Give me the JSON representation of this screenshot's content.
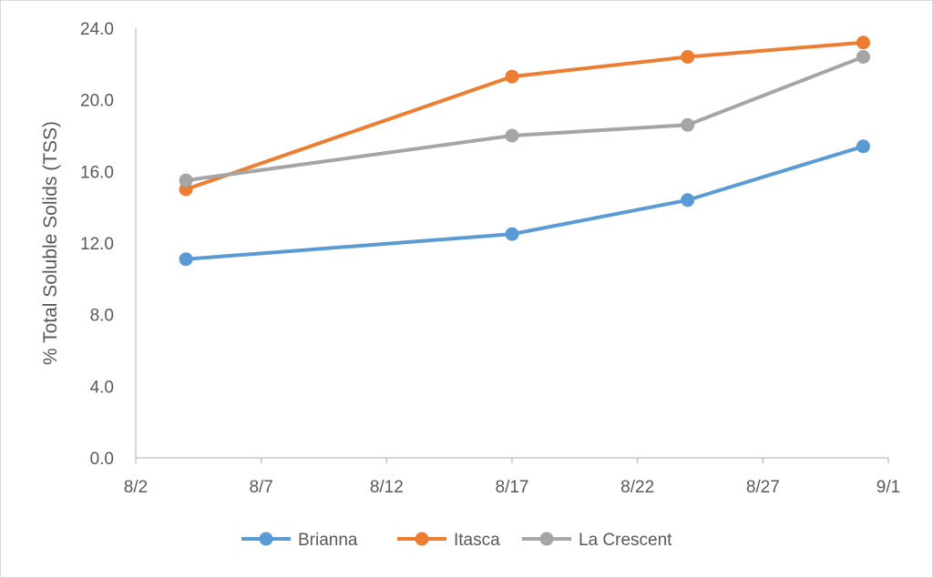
{
  "chart_data": {
    "type": "line",
    "title": "",
    "xlabel": "",
    "ylabel": "% Total Soluble Solids (TSS)",
    "x_ticks": [
      "8/2",
      "8/7",
      "8/12",
      "8/17",
      "8/22",
      "8/27",
      "9/1"
    ],
    "x_tick_days": [
      2,
      7,
      12,
      17,
      22,
      27,
      32
    ],
    "y_ticks": [
      "0.0",
      "4.0",
      "8.0",
      "12.0",
      "16.0",
      "20.0",
      "24.0"
    ],
    "xlim": [
      2,
      32
    ],
    "ylim": [
      0,
      24
    ],
    "x": [
      "8/4",
      "8/17",
      "8/24",
      "8/31"
    ],
    "x_days": [
      4,
      17,
      24,
      31
    ],
    "grid": false,
    "legend_position": "bottom",
    "series": [
      {
        "name": "Brianna",
        "color": "#5b9bd5",
        "values": [
          11.1,
          12.5,
          14.4,
          17.4
        ]
      },
      {
        "name": "Itasca",
        "color": "#ed7d31",
        "values": [
          15.0,
          21.3,
          22.4,
          23.2
        ]
      },
      {
        "name": "La Crescent",
        "color": "#a5a5a5",
        "values": [
          15.5,
          18.0,
          18.6,
          22.4
        ]
      }
    ]
  }
}
